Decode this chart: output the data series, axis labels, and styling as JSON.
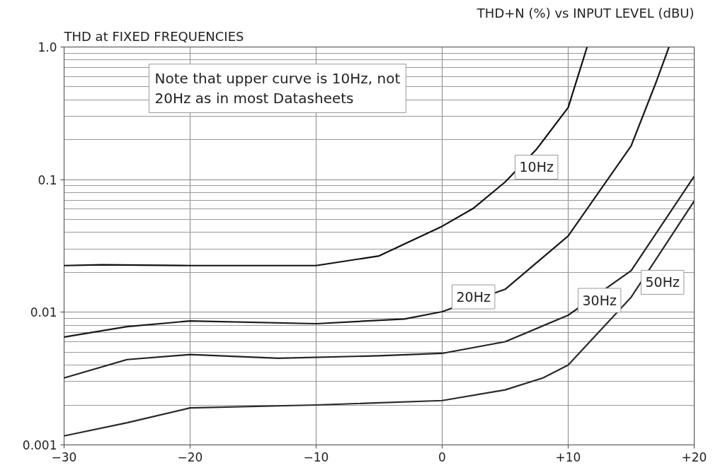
{
  "chart_data": {
    "type": "line",
    "title": "THD at FIXED FREQUENCIES",
    "subtitle": "THD+N (%) vs INPUT LEVEL (dBU)",
    "log": "y",
    "grid": true,
    "marker": "none",
    "line_style": "solid",
    "xlim": [
      -30,
      20
    ],
    "xticks": [
      -30,
      -20,
      -10,
      0,
      {
        "value": 10,
        "label": "+10"
      },
      {
        "value": 20,
        "label": "+20"
      }
    ],
    "ylim": [
      0.001,
      1.0
    ],
    "yticks": [
      0.001,
      0.01,
      0.1,
      {
        "value": 1.0,
        "label": "1.0"
      }
    ],
    "series": [
      {
        "color": "#111111",
        "x": [
          -30,
          -27,
          -20,
          -10,
          -5,
          0,
          2.5,
          5,
          7.5,
          10,
          11.5
        ],
        "values": [
          0.0225,
          0.0228,
          0.0225,
          0.0225,
          0.0266,
          0.0445,
          0.061,
          0.096,
          0.17,
          0.35,
          1.0
        ]
      },
      {
        "color": "#1a1a1a",
        "x": [
          -30,
          -25,
          -20,
          -10,
          -3,
          0,
          5,
          10,
          15,
          17,
          18
        ],
        "values": [
          0.0065,
          0.0078,
          0.0086,
          0.0082,
          0.0089,
          0.0101,
          0.0149,
          0.0376,
          0.18,
          0.55,
          1.0
        ]
      },
      {
        "color": "#222222",
        "x": [
          -30,
          -25,
          -20,
          -13,
          -5,
          0,
          5,
          10,
          15,
          20
        ],
        "values": [
          0.0032,
          0.0044,
          0.0048,
          0.0045,
          0.0047,
          0.0049,
          0.006,
          0.0095,
          0.0206,
          0.106
        ]
      },
      {
        "color": "#2a2a2a",
        "x": [
          -30,
          -25,
          -20,
          -10,
          0,
          5,
          8,
          10,
          15,
          20
        ],
        "values": [
          0.00117,
          0.00147,
          0.0019,
          0.002,
          0.00216,
          0.0026,
          0.0032,
          0.004,
          0.013,
          0.069
        ]
      }
    ],
    "annotations": [
      "Note that upper curve is 10Hz, not 20Hz as in most Datasheets",
      {
        "text": "10Hz",
        "x": 5,
        "y": 0.096
      },
      {
        "text": "20Hz",
        "x": 0,
        "y": 0.0101
      },
      {
        "text": "30Hz",
        "x": 10,
        "y": 0.0095
      },
      {
        "text": "50Hz",
        "x": 15,
        "y": 0.013
      }
    ]
  }
}
